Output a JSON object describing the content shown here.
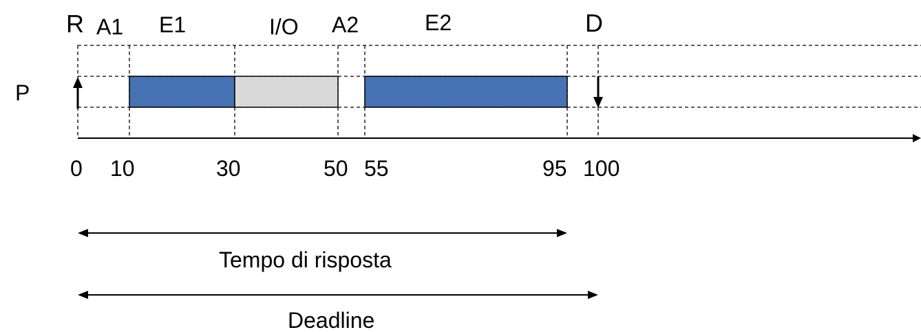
{
  "row_label": "P",
  "phase_labels": {
    "release": "R",
    "wait1": "A1",
    "exec1": "E1",
    "io": "I/O",
    "wait2": "A2",
    "exec2": "E2",
    "deadline": "D"
  },
  "ticks": [
    "0",
    "10",
    "30",
    "50",
    "55",
    "95",
    "100"
  ],
  "spans": {
    "response_time_label": "Tempo di risposta",
    "deadline_label": "Deadline"
  },
  "segments": [
    {
      "name": "E1",
      "start": 10,
      "end": 30,
      "kind": "execution"
    },
    {
      "name": "I/O",
      "start": 30,
      "end": 50,
      "kind": "io"
    },
    {
      "name": "E2",
      "start": 55,
      "end": 95,
      "kind": "execution"
    }
  ],
  "colors": {
    "execution": "#4472b3",
    "io": "#d9d9d9",
    "stroke": "#000000"
  }
}
